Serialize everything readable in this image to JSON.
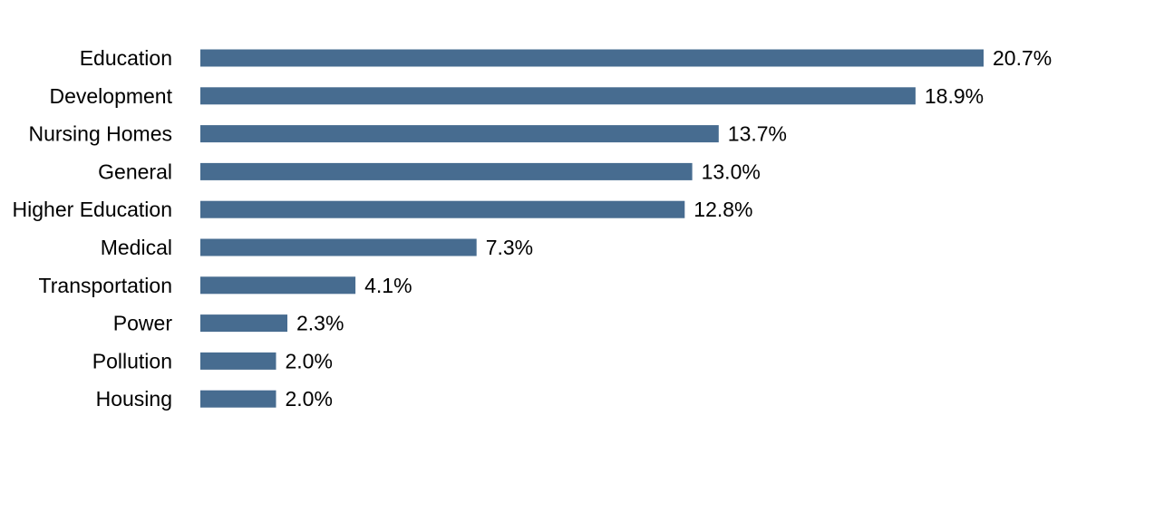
{
  "chart_data": {
    "type": "bar",
    "orientation": "horizontal",
    "title": "",
    "xlabel": "",
    "ylabel": "",
    "categories": [
      "Education",
      "Development",
      "Nursing Homes",
      "General",
      "Higher Education",
      "Medical",
      "Transportation",
      "Power",
      "Pollution",
      "Housing"
    ],
    "values": [
      20.7,
      18.9,
      13.7,
      13.0,
      12.8,
      7.3,
      4.1,
      2.3,
      2.0,
      2.0
    ],
    "value_labels": [
      "20.7%",
      "18.9%",
      "13.7%",
      "13.0%",
      "12.8%",
      "7.3%",
      "4.1%",
      "2.3%",
      "2.0%",
      "2.0%"
    ],
    "xlim": [
      0,
      20.7
    ],
    "grid": false,
    "legend": "none",
    "bar_color": "#476c90"
  }
}
